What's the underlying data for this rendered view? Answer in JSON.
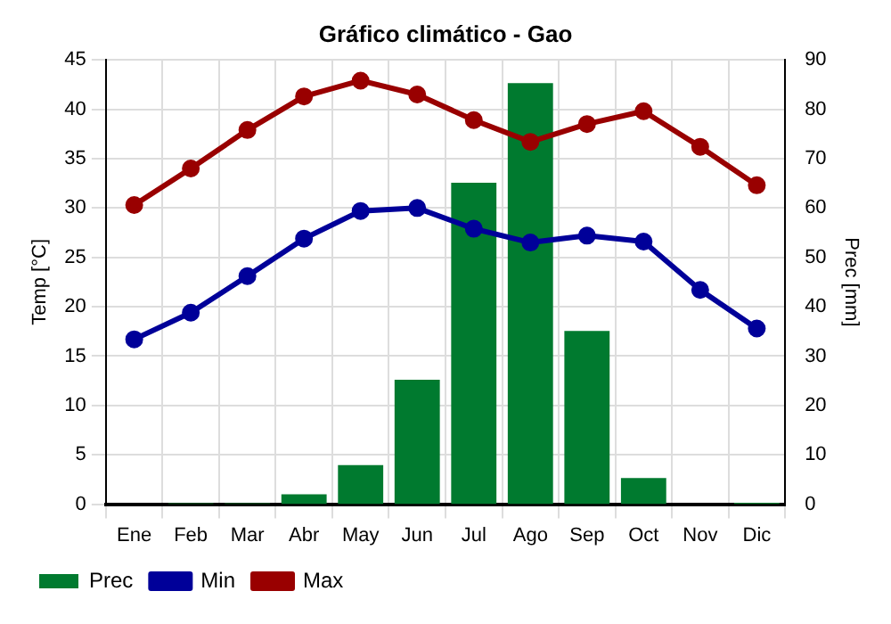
{
  "chart_data": {
    "type": "line",
    "title": "Gráfico climático - Gao",
    "ylabel": "Temp [°C]",
    "y2label": "Prec [mm]",
    "categories": [
      "Ene",
      "Feb",
      "Mar",
      "Abr",
      "May",
      "Jun",
      "Jul",
      "Ago",
      "Sep",
      "Oct",
      "Nov",
      "Dic"
    ],
    "series": [
      {
        "name": "Prec",
        "type": "bar",
        "axis": "y2",
        "color": "#007a2f",
        "values": [
          null,
          0.2,
          0.2,
          2,
          7.9,
          25.2,
          65.1,
          85.3,
          35.1,
          5.3,
          null,
          0.3
        ]
      },
      {
        "name": "Min",
        "color": "#000099",
        "values": [
          16.7,
          19.4,
          23.1,
          26.9,
          29.7,
          30.0,
          27.9,
          26.5,
          27.2,
          26.6,
          21.7,
          17.8
        ]
      },
      {
        "name": "Max",
        "color": "#990000",
        "values": [
          30.3,
          34.0,
          37.9,
          41.3,
          42.9,
          41.5,
          38.9,
          36.7,
          38.5,
          39.8,
          36.2,
          32.3
        ]
      }
    ],
    "ylim": [
      0,
      45
    ],
    "yticks": [
      0,
      5,
      10,
      15,
      20,
      25,
      30,
      35,
      40,
      45
    ],
    "y2lim": [
      0,
      90
    ],
    "y2ticks": [
      0,
      10,
      20,
      30,
      40,
      50,
      60,
      70,
      80,
      90
    ],
    "grid": true,
    "legend": "bottom left",
    "marker": "circle",
    "line_style": "solid"
  }
}
